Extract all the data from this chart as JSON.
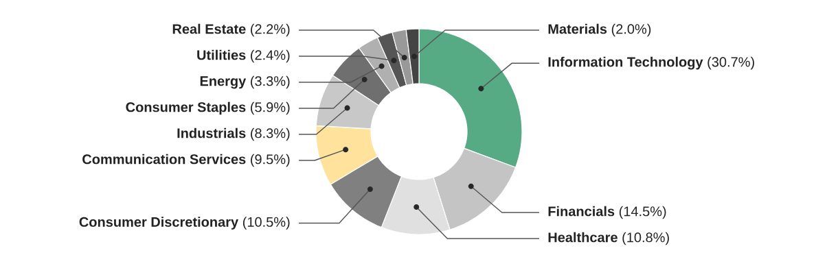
{
  "chart_data": {
    "type": "donut",
    "categories": [
      "Information Technology",
      "Financials",
      "Healthcare",
      "Consumer Discretionary",
      "Communication Services",
      "Industrials",
      "Consumer Staples",
      "Energy",
      "Utilities",
      "Real Estate",
      "Materials"
    ],
    "values": [
      30.7,
      14.5,
      10.8,
      10.5,
      9.5,
      8.3,
      5.9,
      3.3,
      2.4,
      2.2,
      2.0
    ],
    "value_labels": [
      "(30.7%)",
      "(14.5%)",
      "(10.8%)",
      "(10.5%)",
      "(9.5%)",
      "(8.3%)",
      "(5.9%)",
      "(3.3%)",
      "(2.4%)",
      "(2.2%)",
      "(2.0%)"
    ],
    "colors": [
      "#56ab84",
      "#c4c4c4",
      "#e0e0e0",
      "#808080",
      "#ffe39c",
      "#c8c8c8",
      "#6f6f6f",
      "#b0b0b0",
      "#555555",
      "#999999",
      "#444444"
    ]
  }
}
